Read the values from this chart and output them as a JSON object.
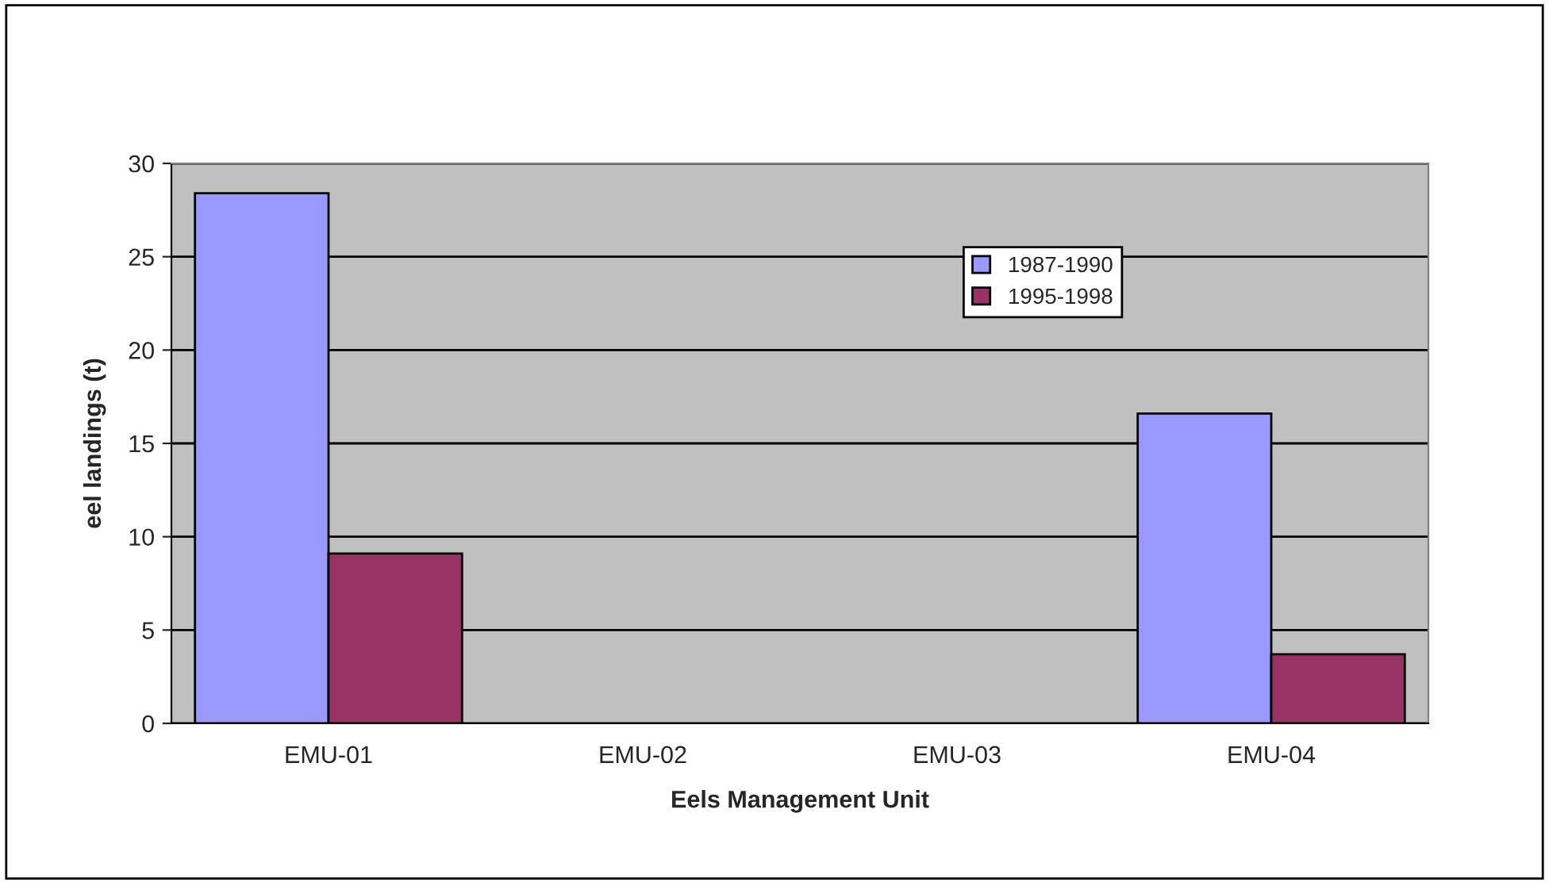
{
  "chart_data": {
    "type": "bar",
    "xlabel": "Eels Management Unit",
    "ylabel": "eel landings (t)",
    "categories": [
      "EMU-01",
      "EMU-02",
      "EMU-03",
      "EMU-04"
    ],
    "series": [
      {
        "name": "1987-1990",
        "color": "#9999ff",
        "values": [
          28.4,
          null,
          null,
          16.6
        ]
      },
      {
        "name": "1995-1998",
        "color": "#993366",
        "values": [
          9.1,
          null,
          null,
          3.7
        ]
      }
    ],
    "ylim": [
      0,
      30
    ],
    "yticks": [
      0,
      5,
      10,
      15,
      20,
      25,
      30
    ],
    "grid": "y",
    "legend": "top right"
  }
}
